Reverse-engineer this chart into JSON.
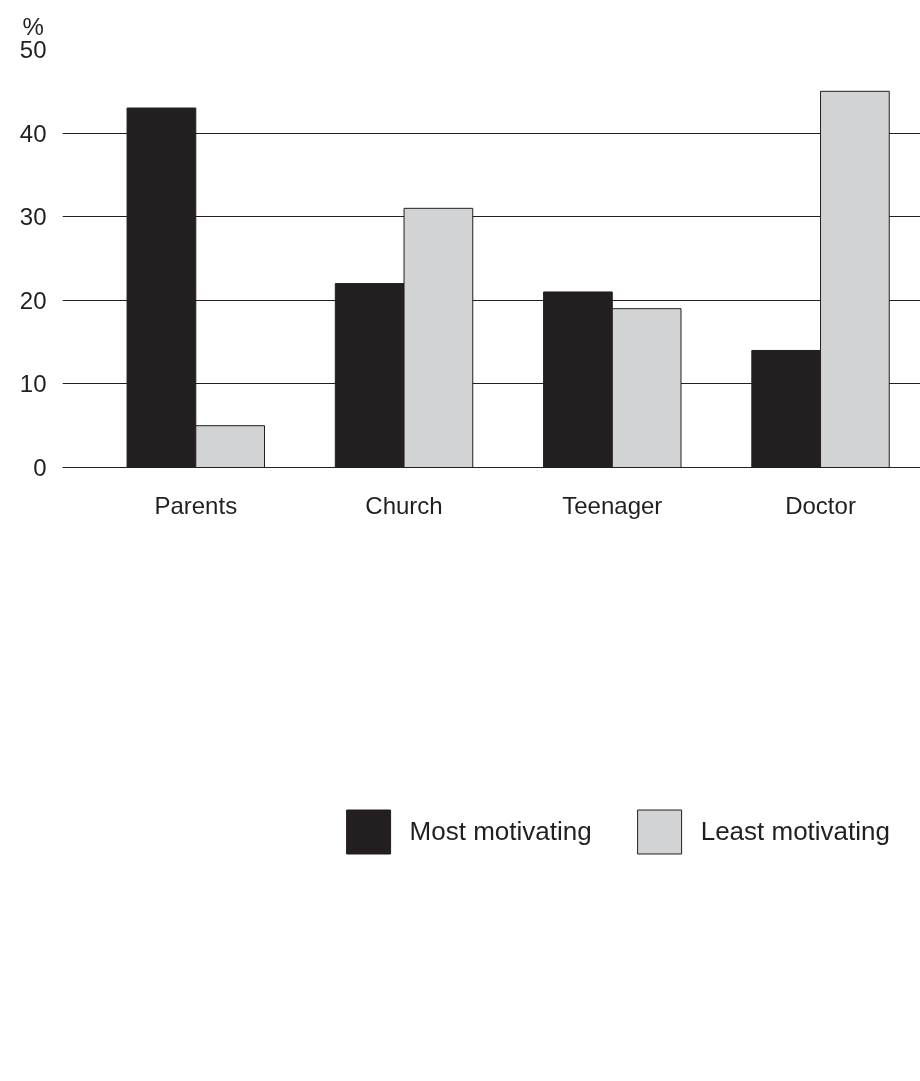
{
  "chart_data": {
    "type": "bar",
    "ylabel": "%",
    "categories": [
      "Parents",
      "Church",
      "Teenager",
      "Doctor"
    ],
    "series": [
      {
        "name": "Most motivating",
        "color": "#231f20",
        "values": [
          43,
          22,
          21,
          14
        ]
      },
      {
        "name": "Least motivating",
        "color": "#d1d3d4",
        "values": [
          5,
          31,
          19,
          45
        ]
      }
    ],
    "ylim": [
      0,
      50
    ],
    "yticks": [
      0,
      10,
      20,
      30,
      40,
      50
    ],
    "grid": "y",
    "legend": "bottom"
  }
}
